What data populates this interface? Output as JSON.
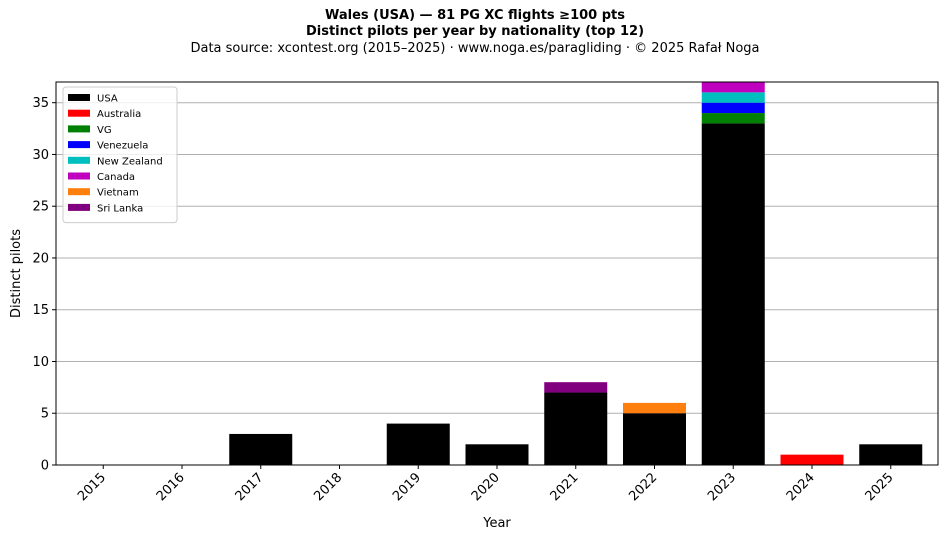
{
  "header": {
    "title": "Wales (USA)  —  81 PG XC flights ≥100 pts",
    "subtitle": "Distinct pilots per year by nationality (top 12)",
    "source": "Data source: xcontest.org (2015–2025)  ·  www.noga.es/paragliding  ·  © 2025 Rafał Noga"
  },
  "chart_data": {
    "type": "bar",
    "stacked": true,
    "xlabel": "Year",
    "ylabel": "Distinct pilots",
    "ylim": [
      0,
      37
    ],
    "yticks": [
      0,
      5,
      10,
      15,
      20,
      25,
      30,
      35
    ],
    "grid": "horizontal",
    "legend_position": "top-left",
    "categories": [
      "2015",
      "2016",
      "2017",
      "2018",
      "2019",
      "2020",
      "2021",
      "2022",
      "2023",
      "2024",
      "2025"
    ],
    "series": [
      {
        "name": "USA",
        "color": "#000000",
        "values": [
          0,
          0,
          3,
          0,
          4,
          2,
          7,
          5,
          33,
          0,
          2
        ]
      },
      {
        "name": "Australia",
        "color": "#ff0000",
        "values": [
          0,
          0,
          0,
          0,
          0,
          0,
          0,
          0,
          0,
          1,
          0
        ]
      },
      {
        "name": "VG",
        "color": "#008000",
        "values": [
          0,
          0,
          0,
          0,
          0,
          0,
          0,
          0,
          1,
          0,
          0
        ]
      },
      {
        "name": "Venezuela",
        "color": "#0000ff",
        "values": [
          0,
          0,
          0,
          0,
          0,
          0,
          0,
          0,
          1,
          0,
          0
        ]
      },
      {
        "name": "New Zealand",
        "color": "#00bfbf",
        "values": [
          0,
          0,
          0,
          0,
          0,
          0,
          0,
          0,
          1,
          0,
          0
        ]
      },
      {
        "name": "Canada",
        "color": "#bf00bf",
        "values": [
          0,
          0,
          0,
          0,
          0,
          0,
          0,
          0,
          1,
          0,
          0
        ]
      },
      {
        "name": "Vietnam",
        "color": "#ff7f0e",
        "values": [
          0,
          0,
          0,
          0,
          0,
          0,
          0,
          1,
          0,
          0,
          0
        ]
      },
      {
        "name": "Sri Lanka",
        "color": "#800080",
        "values": [
          0,
          0,
          0,
          0,
          0,
          0,
          1,
          0,
          0,
          0,
          0
        ]
      }
    ]
  }
}
